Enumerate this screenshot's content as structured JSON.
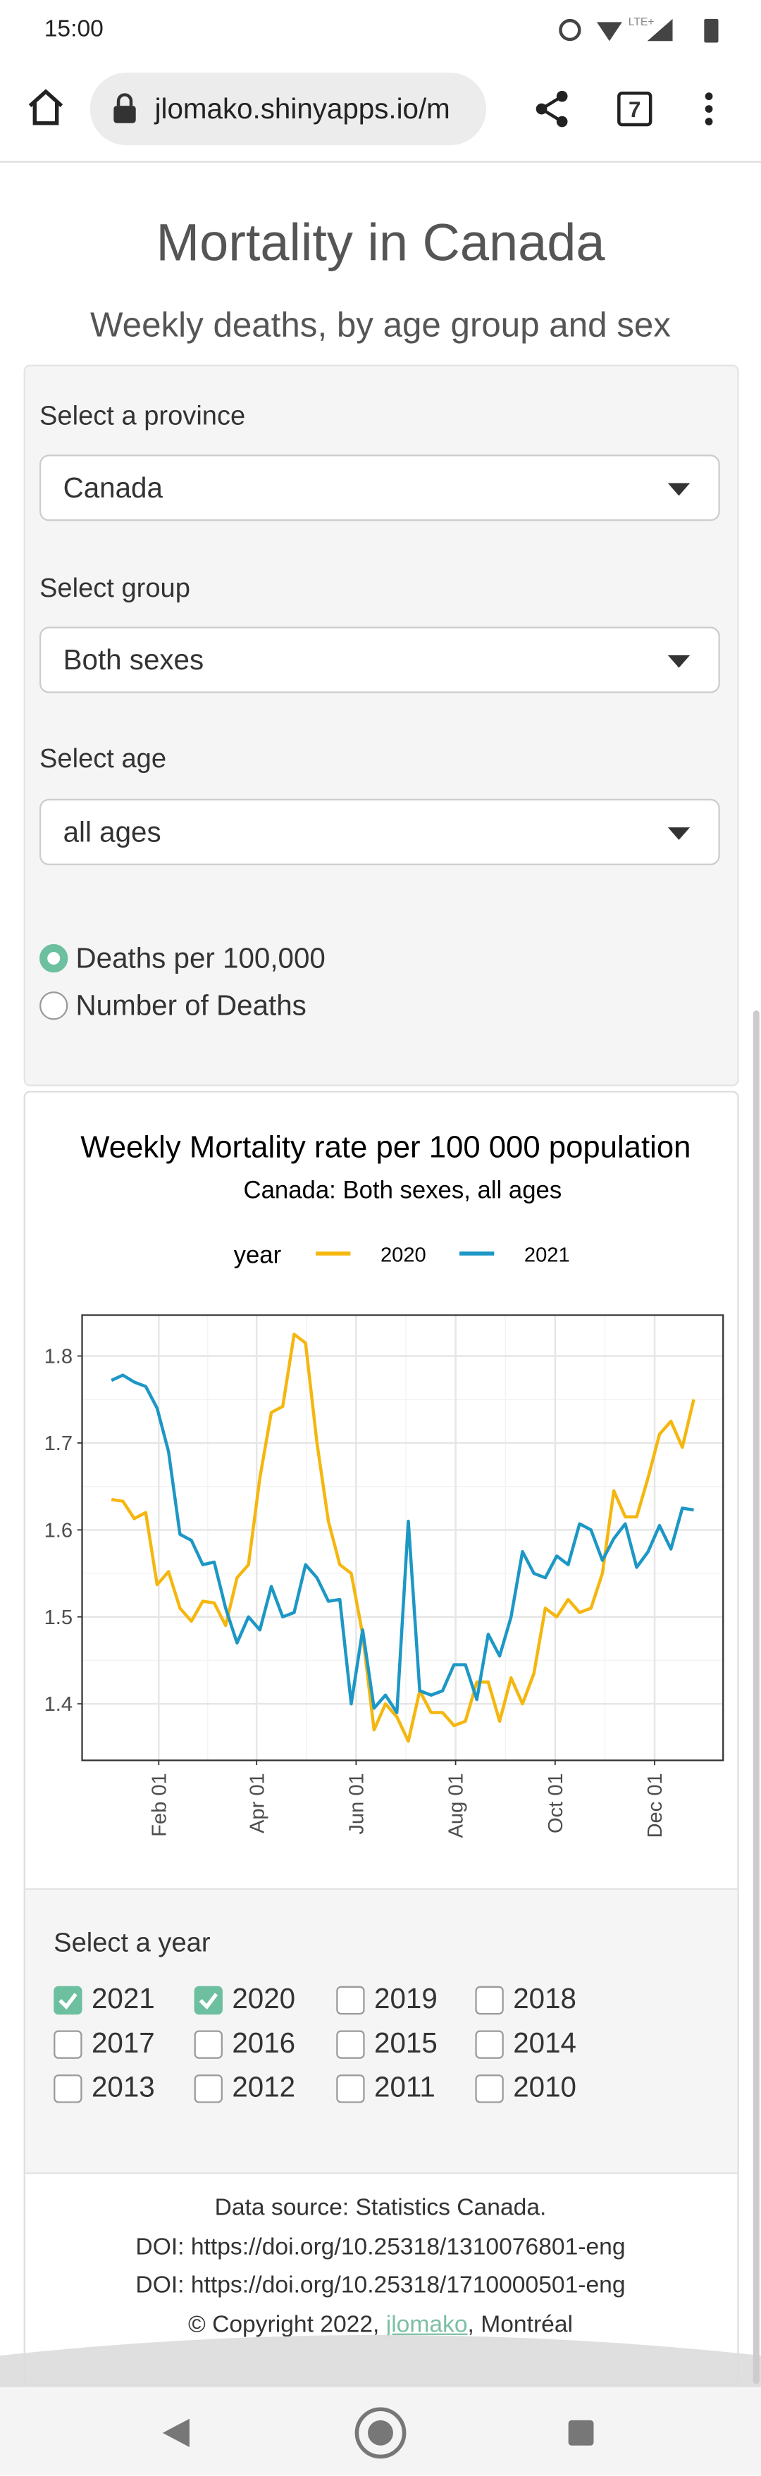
{
  "status_bar": {
    "time": "15:00",
    "network": "LTE+"
  },
  "browser": {
    "url": "jlomako.shinyapps.io/m",
    "tab_count": 7
  },
  "header": {
    "title": "Mortality in Canada",
    "subtitle": "Weekly deaths, by age group and sex"
  },
  "controls": {
    "province": {
      "label": "Select a province",
      "value": "Canada"
    },
    "group": {
      "label": "Select group",
      "value": "Both sexes"
    },
    "age": {
      "label": "Select age",
      "value": "all ages"
    },
    "measure": {
      "options": [
        "Deaths per 100,000",
        "Number of Deaths"
      ],
      "selected": 0
    }
  },
  "chart_data": {
    "type": "line",
    "title": "Weekly Mortality rate per 100 000 population",
    "subtitle": "Canada: Both sexes, all ages",
    "legend_title": "year",
    "x": [
      3,
      10,
      17,
      24,
      31,
      38,
      45,
      52,
      59,
      66,
      73,
      80,
      87,
      94,
      101,
      108,
      115,
      122,
      129,
      136,
      143,
      150,
      157,
      164,
      171,
      178,
      185,
      192,
      199,
      206,
      213,
      220,
      227,
      234,
      241,
      248,
      255,
      262,
      269,
      276,
      283,
      290,
      297,
      304,
      311,
      318,
      325,
      332,
      339,
      346,
      353,
      360
    ],
    "series": [
      {
        "name": "2020",
        "color": "#f5b70f",
        "values": [
          1.635,
          1.633,
          1.613,
          1.62,
          1.537,
          1.552,
          1.51,
          1.495,
          1.518,
          1.516,
          1.49,
          1.545,
          1.56,
          1.66,
          1.735,
          1.742,
          1.825,
          1.815,
          1.7,
          1.61,
          1.56,
          1.55,
          1.48,
          1.37,
          1.4,
          1.385,
          1.357,
          1.415,
          1.39,
          1.39,
          1.375,
          1.38,
          1.425,
          1.425,
          1.38,
          1.43,
          1.4,
          1.435,
          1.51,
          1.5,
          1.52,
          1.505,
          1.51,
          1.55,
          1.645,
          1.615,
          1.615,
          1.66,
          1.71,
          1.725,
          1.695,
          1.75
        ]
      },
      {
        "name": "2021",
        "color": "#1d97c5",
        "values": [
          1.772,
          1.778,
          1.77,
          1.765,
          1.74,
          1.69,
          1.595,
          1.588,
          1.56,
          1.563,
          1.51,
          1.47,
          1.5,
          1.485,
          1.535,
          1.5,
          1.505,
          1.56,
          1.545,
          1.518,
          1.52,
          1.4,
          1.485,
          1.395,
          1.41,
          1.39,
          1.61,
          1.415,
          1.41,
          1.415,
          1.445,
          1.445,
          1.405,
          1.48,
          1.455,
          1.5,
          1.575,
          1.55,
          1.545,
          1.57,
          1.56,
          1.607,
          1.6,
          1.565,
          1.59,
          1.607,
          1.557,
          1.575,
          1.605,
          1.578,
          1.625,
          1.623
        ]
      }
    ],
    "xlim": [
      -15,
      378
    ],
    "xticks": [
      {
        "value": 32,
        "label": "Feb 01"
      },
      {
        "value": 92,
        "label": "Apr 01"
      },
      {
        "value": 153,
        "label": "Jun 01"
      },
      {
        "value": 214,
        "label": "Aug 01"
      },
      {
        "value": 275,
        "label": "Oct 01"
      },
      {
        "value": 336,
        "label": "Dec 01"
      }
    ],
    "ylim": [
      1.335,
      1.847
    ],
    "yticks": [
      1.4,
      1.5,
      1.6,
      1.7,
      1.8
    ],
    "grid": true,
    "legend_position": "top"
  },
  "year_selector": {
    "label": "Select a year",
    "years": [
      {
        "label": "2021",
        "checked": true
      },
      {
        "label": "2020",
        "checked": true
      },
      {
        "label": "2019",
        "checked": false
      },
      {
        "label": "2018",
        "checked": false
      },
      {
        "label": "2017",
        "checked": false
      },
      {
        "label": "2016",
        "checked": false
      },
      {
        "label": "2015",
        "checked": false
      },
      {
        "label": "2014",
        "checked": false
      },
      {
        "label": "2013",
        "checked": false
      },
      {
        "label": "2012",
        "checked": false
      },
      {
        "label": "2011",
        "checked": false
      },
      {
        "label": "2010",
        "checked": false
      }
    ]
  },
  "footer": {
    "lines": [
      "Data source: Statistics Canada.",
      "DOI: https://doi.org/10.25318/1310076801-eng",
      "DOI: https://doi.org/10.25318/1710000501-eng"
    ],
    "copyright_prefix": "© Copyright 2022, ",
    "link": "jlomako",
    "copyright_suffix": ", Montréal"
  }
}
